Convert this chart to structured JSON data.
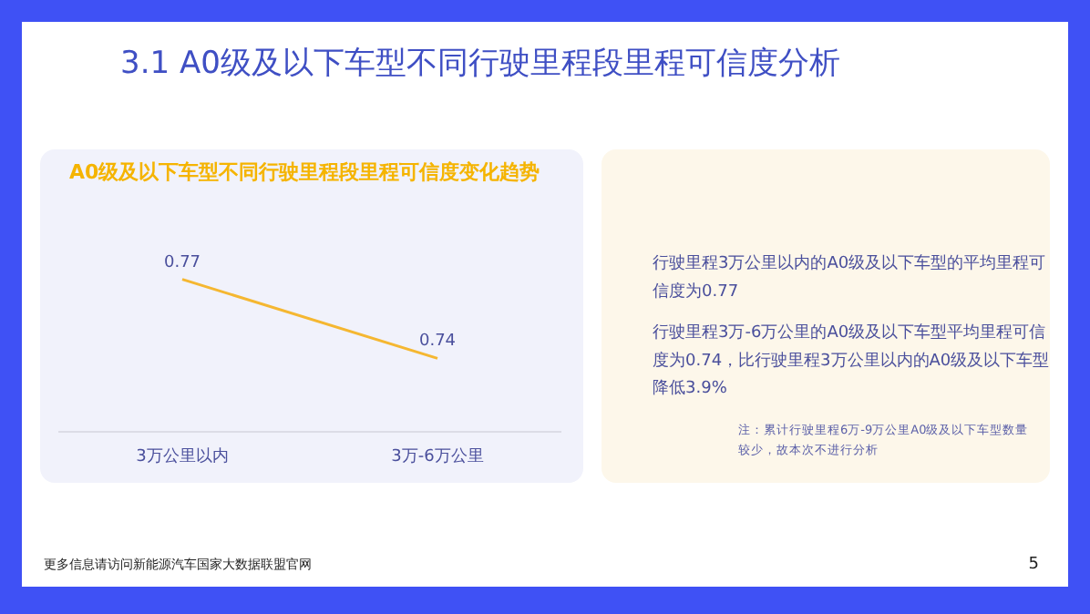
{
  "chart_data": {
    "type": "line",
    "title": "3.1 A0级及以下车型不同行驶里程段里程可信度分析",
    "subtitle": "A0级及以下车型不同行驶里程段里程可信度变化趋势",
    "categories": [
      "3万公里以内",
      "3万-6万公里"
    ],
    "series": [
      {
        "color": "#f5b731",
        "values": [
          0.77,
          0.74
        ]
      }
    ],
    "data_labels": true,
    "marker": "none",
    "line_style": "solid",
    "annotations": [
      "行驶里程3万公里以内的A0级及以下车型的平均里程可信度为0.77",
      "行驶里程3万-6万公里的A0级及以下车型平均里程可信度为0.74，比行驶里程3万公里以内的A0级及以下车型降低3.9%",
      "注：累计行驶里程6万-9万公里A0级及以下车型数量较少，故本次不进行分析",
      "更多信息请访问新能源汽车国家大数据联盟官网",
      "5"
    ]
  }
}
